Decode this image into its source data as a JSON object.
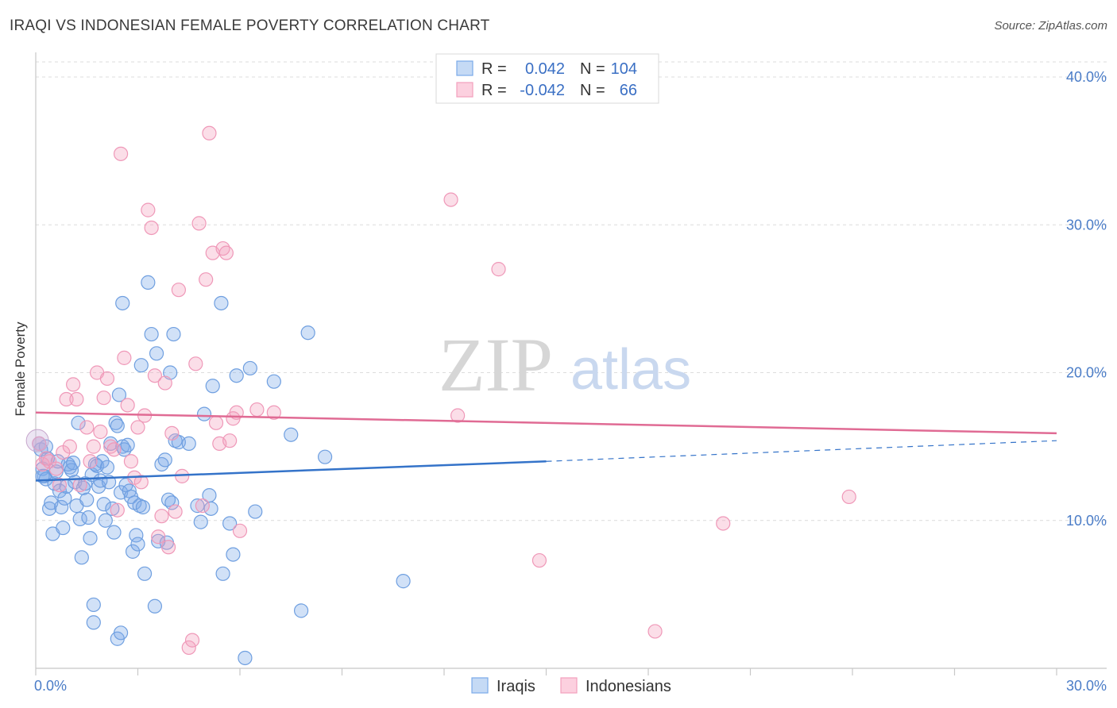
{
  "chart_data": {
    "type": "scatter",
    "title": "IRAQI VS INDONESIAN FEMALE POVERTY CORRELATION CHART",
    "source": "Source: ZipAtlas.com",
    "xlabel": "",
    "ylabel": "Female Poverty",
    "xlim": [
      0,
      30
    ],
    "ylim": [
      0,
      40
    ],
    "x_tick_labels": [
      "0.0%",
      "30.0%"
    ],
    "y_ticks": [
      10,
      20,
      30,
      40
    ],
    "y_tick_labels": [
      "10.0%",
      "20.0%",
      "30.0%",
      "40.0%"
    ],
    "grid": true,
    "legend_position": "top-center",
    "watermark": {
      "zip": "ZIP",
      "atlas": "atlas"
    },
    "stats": [
      {
        "r_label": "R =",
        "r_value": "0.042",
        "n_label": "N =",
        "n_value": "104"
      },
      {
        "r_label": "R =",
        "r_value": "-0.042",
        "n_label": "N =",
        "n_value": "66"
      }
    ],
    "series": [
      {
        "name": "Iraqis",
        "color": "#7aaae8",
        "line_color": "#3473c9",
        "trend": {
          "x0": 0,
          "y0": 12.7,
          "x1": 15,
          "y1": 14.0,
          "dash_x1": 30,
          "dash_y1": 15.4
        },
        "points": [
          [
            0.1,
            15.2
          ],
          [
            0.15,
            14.8
          ],
          [
            0.2,
            13.5
          ],
          [
            0.25,
            13.0
          ],
          [
            0.3,
            12.8
          ],
          [
            0.35,
            14.2
          ],
          [
            0.4,
            10.8
          ],
          [
            0.45,
            11.2
          ],
          [
            0.5,
            9.1
          ],
          [
            0.55,
            12.5
          ],
          [
            0.6,
            13.3
          ],
          [
            0.65,
            14.0
          ],
          [
            0.7,
            12.0
          ],
          [
            0.75,
            10.9
          ],
          [
            0.8,
            9.5
          ],
          [
            0.85,
            11.5
          ],
          [
            0.9,
            12.3
          ],
          [
            0.95,
            13.8
          ],
          [
            1.0,
            13.6
          ],
          [
            1.05,
            13.4
          ],
          [
            1.1,
            13.9
          ],
          [
            1.15,
            12.6
          ],
          [
            1.2,
            11.0
          ],
          [
            1.25,
            16.6
          ],
          [
            1.3,
            10.1
          ],
          [
            1.35,
            7.5
          ],
          [
            1.4,
            12.2
          ],
          [
            1.45,
            12.5
          ],
          [
            1.5,
            11.4
          ],
          [
            1.55,
            10.2
          ],
          [
            1.6,
            8.8
          ],
          [
            1.65,
            13.1
          ],
          [
            1.7,
            4.3
          ],
          [
            1.75,
            13.8
          ],
          [
            1.8,
            13.7
          ],
          [
            1.85,
            12.3
          ],
          [
            1.9,
            12.7
          ],
          [
            1.95,
            14.0
          ],
          [
            2.0,
            11.1
          ],
          [
            2.05,
            10.0
          ],
          [
            2.1,
            13.6
          ],
          [
            2.15,
            12.6
          ],
          [
            2.2,
            15.2
          ],
          [
            2.25,
            10.8
          ],
          [
            2.3,
            9.2
          ],
          [
            2.35,
            16.6
          ],
          [
            2.4,
            16.4
          ],
          [
            2.45,
            18.5
          ],
          [
            2.5,
            11.9
          ],
          [
            2.55,
            15.0
          ],
          [
            2.6,
            14.8
          ],
          [
            2.65,
            12.4
          ],
          [
            2.7,
            15.1
          ],
          [
            2.75,
            12.0
          ],
          [
            2.8,
            11.6
          ],
          [
            2.85,
            7.9
          ],
          [
            2.9,
            11.2
          ],
          [
            2.95,
            9.0
          ],
          [
            3.0,
            8.4
          ],
          [
            3.05,
            11.0
          ],
          [
            3.1,
            20.5
          ],
          [
            3.15,
            10.9
          ],
          [
            3.2,
            6.4
          ],
          [
            3.3,
            26.1
          ],
          [
            3.4,
            22.6
          ],
          [
            3.5,
            4.2
          ],
          [
            3.55,
            21.3
          ],
          [
            3.6,
            8.6
          ],
          [
            3.7,
            13.8
          ],
          [
            3.8,
            14.1
          ],
          [
            3.85,
            8.5
          ],
          [
            3.9,
            11.4
          ],
          [
            3.95,
            20.0
          ],
          [
            4.0,
            11.2
          ],
          [
            4.05,
            22.6
          ],
          [
            4.1,
            15.4
          ],
          [
            4.2,
            15.3
          ],
          [
            4.5,
            15.2
          ],
          [
            4.75,
            11.0
          ],
          [
            4.85,
            9.9
          ],
          [
            4.95,
            17.2
          ],
          [
            5.1,
            11.7
          ],
          [
            5.15,
            10.8
          ],
          [
            5.2,
            19.1
          ],
          [
            5.45,
            24.7
          ],
          [
            5.5,
            6.4
          ],
          [
            5.7,
            9.8
          ],
          [
            5.8,
            7.7
          ],
          [
            5.9,
            19.8
          ],
          [
            6.15,
            0.7
          ],
          [
            6.3,
            20.3
          ],
          [
            6.45,
            10.6
          ],
          [
            7.0,
            19.4
          ],
          [
            7.5,
            15.8
          ],
          [
            7.8,
            3.9
          ],
          [
            8.0,
            22.7
          ],
          [
            8.5,
            14.3
          ],
          [
            10.8,
            5.9
          ],
          [
            1.7,
            3.1
          ],
          [
            2.4,
            2.0
          ],
          [
            2.5,
            2.4
          ],
          [
            2.55,
            24.7
          ],
          [
            0.2,
            13.0
          ],
          [
            0.3,
            15.0
          ]
        ]
      },
      {
        "name": "Indonesians",
        "color": "#f3a0bd",
        "line_color": "#e06b94",
        "trend": {
          "x0": 0,
          "y0": 17.3,
          "x1": 30,
          "y1": 15.9
        },
        "points": [
          [
            0.1,
            15.2
          ],
          [
            0.2,
            13.8
          ],
          [
            0.3,
            14.2
          ],
          [
            0.4,
            14.0
          ],
          [
            0.6,
            13.5
          ],
          [
            0.7,
            12.4
          ],
          [
            0.8,
            14.6
          ],
          [
            0.9,
            18.2
          ],
          [
            1.0,
            15.0
          ],
          [
            1.1,
            19.2
          ],
          [
            1.2,
            18.2
          ],
          [
            1.3,
            12.4
          ],
          [
            1.5,
            16.3
          ],
          [
            1.6,
            14.0
          ],
          [
            1.7,
            15.0
          ],
          [
            1.8,
            20.0
          ],
          [
            1.9,
            16.0
          ],
          [
            2.0,
            18.3
          ],
          [
            2.1,
            19.6
          ],
          [
            2.2,
            15.0
          ],
          [
            2.3,
            14.8
          ],
          [
            2.4,
            10.7
          ],
          [
            2.5,
            34.8
          ],
          [
            2.6,
            21.0
          ],
          [
            2.7,
            17.8
          ],
          [
            2.8,
            14.0
          ],
          [
            2.9,
            12.9
          ],
          [
            3.0,
            16.3
          ],
          [
            3.1,
            12.6
          ],
          [
            3.2,
            17.1
          ],
          [
            3.3,
            31.0
          ],
          [
            3.4,
            29.8
          ],
          [
            3.5,
            19.8
          ],
          [
            3.6,
            8.9
          ],
          [
            3.7,
            10.3
          ],
          [
            3.8,
            19.3
          ],
          [
            3.9,
            8.2
          ],
          [
            4.0,
            15.9
          ],
          [
            4.1,
            10.6
          ],
          [
            4.2,
            25.6
          ],
          [
            4.3,
            13.0
          ],
          [
            4.5,
            1.4
          ],
          [
            4.6,
            1.9
          ],
          [
            4.7,
            20.6
          ],
          [
            4.8,
            30.1
          ],
          [
            4.9,
            11.0
          ],
          [
            5.0,
            26.3
          ],
          [
            5.1,
            36.2
          ],
          [
            5.2,
            28.1
          ],
          [
            5.3,
            16.6
          ],
          [
            5.4,
            15.2
          ],
          [
            5.5,
            28.4
          ],
          [
            5.6,
            28.1
          ],
          [
            5.7,
            15.4
          ],
          [
            5.8,
            16.9
          ],
          [
            5.9,
            17.3
          ],
          [
            6.0,
            9.3
          ],
          [
            6.5,
            17.5
          ],
          [
            7.0,
            17.3
          ],
          [
            12.2,
            31.7
          ],
          [
            12.4,
            17.1
          ],
          [
            13.6,
            27.0
          ],
          [
            14.8,
            7.3
          ],
          [
            18.2,
            2.5
          ],
          [
            20.2,
            9.8
          ],
          [
            23.9,
            11.6
          ]
        ]
      }
    ]
  }
}
